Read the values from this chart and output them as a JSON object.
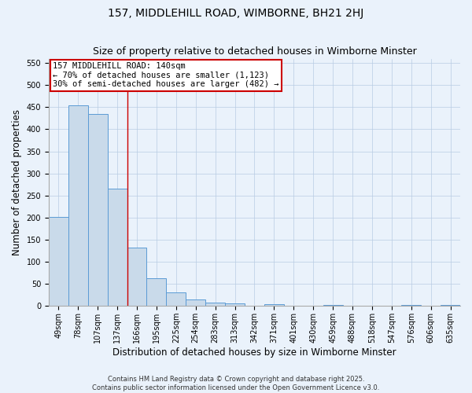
{
  "title": "157, MIDDLEHILL ROAD, WIMBORNE, BH21 2HJ",
  "subtitle": "Size of property relative to detached houses in Wimborne Minster",
  "xlabel": "Distribution of detached houses by size in Wimborne Minster",
  "ylabel": "Number of detached properties",
  "categories": [
    "49sqm",
    "78sqm",
    "107sqm",
    "137sqm",
    "166sqm",
    "195sqm",
    "225sqm",
    "254sqm",
    "283sqm",
    "313sqm",
    "342sqm",
    "371sqm",
    "401sqm",
    "430sqm",
    "459sqm",
    "488sqm",
    "518sqm",
    "547sqm",
    "576sqm",
    "606sqm",
    "635sqm"
  ],
  "values": [
    201,
    454,
    434,
    265,
    132,
    62,
    30,
    14,
    7,
    5,
    1,
    4,
    1,
    0,
    2,
    0,
    0,
    0,
    2,
    0,
    3
  ],
  "bar_color": "#c9daea",
  "bar_edgecolor": "#5b9bd5",
  "property_bin_index": 3,
  "property_label": "157 MIDDLEHILL ROAD: 140sqm",
  "annotation_line1": "← 70% of detached houses are smaller (1,123)",
  "annotation_line2": "30% of semi-detached houses are larger (482) →",
  "vline_color": "#cc0000",
  "annotation_box_edgecolor": "#cc0000",
  "annotation_box_facecolor": "#ffffff",
  "ylim": [
    0,
    560
  ],
  "yticks": [
    0,
    50,
    100,
    150,
    200,
    250,
    300,
    350,
    400,
    450,
    500,
    550
  ],
  "grid_color": "#b8cce4",
  "background_color": "#eaf2fb",
  "footer_line1": "Contains HM Land Registry data © Crown copyright and database right 2025.",
  "footer_line2": "Contains public sector information licensed under the Open Government Licence v3.0.",
  "title_fontsize": 10,
  "axis_label_fontsize": 8.5,
  "tick_fontsize": 7,
  "annotation_fontsize": 7.5,
  "footer_fontsize": 6
}
